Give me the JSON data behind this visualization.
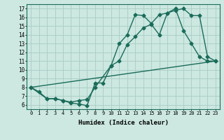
{
  "xlabel": "Humidex (Indice chaleur)",
  "bg_color": "#cce8e0",
  "grid_color": "#a8ccc4",
  "line_color": "#1a6b5a",
  "xlim": [
    -0.5,
    23.5
  ],
  "ylim": [
    5.5,
    17.5
  ],
  "xticks": [
    0,
    1,
    2,
    3,
    4,
    5,
    6,
    7,
    8,
    9,
    10,
    11,
    12,
    13,
    14,
    15,
    16,
    17,
    18,
    19,
    20,
    21,
    22,
    23
  ],
  "yticks": [
    6,
    7,
    8,
    9,
    10,
    11,
    12,
    13,
    14,
    15,
    16,
    17
  ],
  "line1_x": [
    0,
    1,
    2,
    3,
    4,
    5,
    6,
    7,
    8,
    9,
    10,
    11,
    12,
    13,
    14,
    15,
    16,
    17,
    18,
    19,
    20,
    21,
    22,
    23
  ],
  "line1_y": [
    8.0,
    7.5,
    6.7,
    6.7,
    6.5,
    6.2,
    6.1,
    5.9,
    8.5,
    8.5,
    10.5,
    11.0,
    12.9,
    13.8,
    14.8,
    15.2,
    14.0,
    16.5,
    17.0,
    14.5,
    13.0,
    11.5,
    11.0,
    11.0
  ],
  "line2_x": [
    0,
    2,
    3,
    4,
    5,
    6,
    7,
    8,
    10,
    11,
    12,
    13,
    14,
    15,
    16,
    17,
    18,
    19,
    20,
    21,
    22,
    23
  ],
  "line2_y": [
    8.0,
    6.7,
    6.7,
    6.5,
    6.3,
    6.5,
    6.6,
    8.0,
    10.5,
    13.0,
    14.0,
    16.3,
    16.2,
    15.3,
    16.3,
    16.5,
    16.8,
    17.0,
    16.2,
    16.2,
    11.5,
    11.0
  ],
  "line3_x": [
    0,
    23
  ],
  "line3_y": [
    8.0,
    11.0
  ],
  "marker_size": 2.5,
  "line_width": 1.0
}
